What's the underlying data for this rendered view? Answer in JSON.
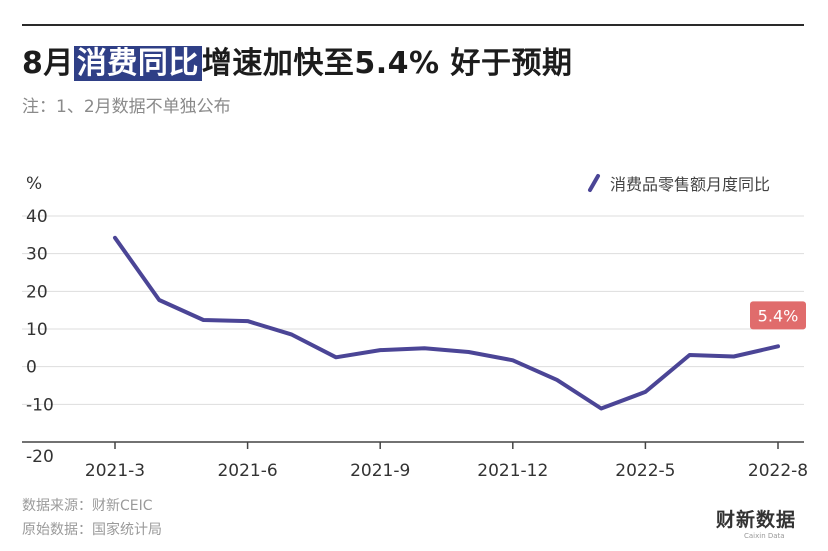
{
  "title": {
    "pre": "8月",
    "highlight": "消费同比",
    "post": "增速加快至5.4% 好于预期"
  },
  "subtitle": "注：1、2月数据不单独公布",
  "footer": {
    "source": "数据来源：财新CEIC",
    "origin": "原始数据：国家统计局"
  },
  "logo": {
    "main": "财新数据",
    "sub": "Caixin Data"
  },
  "colors": {
    "line": "#4b4596",
    "badge": "#e06c6c",
    "grid": "#dddddd"
  },
  "chart_data": {
    "type": "line",
    "ylabel": "%",
    "ylim": [
      -20,
      40
    ],
    "yticks": [
      40,
      30,
      20,
      10,
      0,
      -10,
      -20
    ],
    "xticks": [
      "2021-3",
      "2021-6",
      "2021-9",
      "2021-12",
      "2022-5",
      "2022-8"
    ],
    "legend": "消费品零售额月度同比",
    "legend_position": "top-right",
    "x": [
      "2021-3",
      "2021-4",
      "2021-5",
      "2021-6",
      "2021-7",
      "2021-8",
      "2021-9",
      "2021-10",
      "2021-11",
      "2021-12",
      "2022-3",
      "2022-4",
      "2022-5",
      "2022-6",
      "2022-7",
      "2022-8"
    ],
    "values": [
      34.2,
      17.7,
      12.4,
      12.1,
      8.5,
      2.5,
      4.4,
      4.9,
      3.9,
      1.7,
      -3.5,
      -11.1,
      -6.7,
      3.1,
      2.7,
      5.4
    ],
    "annotation": {
      "label": "5.4%",
      "index": 15
    }
  }
}
